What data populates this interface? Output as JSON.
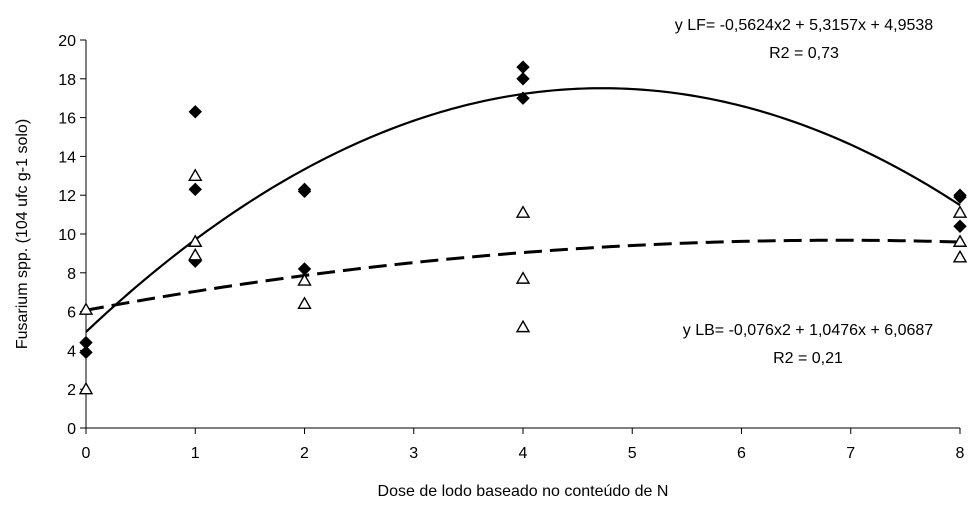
{
  "chart_data": {
    "type": "scatter",
    "xlabel": "Dose de lodo baseado no conteúdo de N",
    "ylabel": "Fusarium spp. (104 ufc g-1 solo)",
    "x_categories": [
      "0",
      "1",
      "2",
      "3",
      "4",
      "5",
      "6",
      "7",
      "8"
    ],
    "ylim": [
      0,
      20
    ],
    "y_ticks": [
      "0",
      "2",
      "4",
      "6",
      "8",
      "10",
      "12",
      "14",
      "16",
      "18",
      "20"
    ],
    "grid": false,
    "series": [
      {
        "marker": "filled-diamond",
        "points": [
          {
            "x": 0,
            "y": 4.4
          },
          {
            "x": 0,
            "y": 3.9
          },
          {
            "x": 1,
            "y": 16.3
          },
          {
            "x": 1,
            "y": 12.3
          },
          {
            "x": 1,
            "y": 8.6
          },
          {
            "x": 2,
            "y": 12.3
          },
          {
            "x": 2,
            "y": 12.2
          },
          {
            "x": 2,
            "y": 8.2
          },
          {
            "x": 4,
            "y": 18.6
          },
          {
            "x": 4,
            "y": 18.0
          },
          {
            "x": 4,
            "y": 17.0
          },
          {
            "x": 8,
            "y": 12.0
          },
          {
            "x": 8,
            "y": 11.9
          },
          {
            "x": 8,
            "y": 10.4
          }
        ],
        "fit": {
          "a": -0.5624,
          "b": 5.3157,
          "c": 4.9538,
          "line": "solid"
        },
        "equation": "y LF= -0,5624x2 + 5,3157x + 4,9538",
        "r2": "R2 = 0,73"
      },
      {
        "marker": "open-triangle",
        "points": [
          {
            "x": 0,
            "y": 6.1
          },
          {
            "x": 0,
            "y": 2.0
          },
          {
            "x": 1,
            "y": 13.0
          },
          {
            "x": 1,
            "y": 9.6
          },
          {
            "x": 1,
            "y": 8.9
          },
          {
            "x": 2,
            "y": 7.6
          },
          {
            "x": 2,
            "y": 6.4
          },
          {
            "x": 4,
            "y": 11.1
          },
          {
            "x": 4,
            "y": 7.7
          },
          {
            "x": 4,
            "y": 5.2
          },
          {
            "x": 8,
            "y": 11.1
          },
          {
            "x": 8,
            "y": 9.6
          },
          {
            "x": 8,
            "y": 8.8
          }
        ],
        "fit": {
          "a": -0.076,
          "b": 1.0476,
          "c": 6.0687,
          "line": "dashed"
        },
        "equation": "y LB= -0,076x2 + 1,0476x + 6,0687",
        "r2": "R2 = 0,21"
      }
    ]
  }
}
